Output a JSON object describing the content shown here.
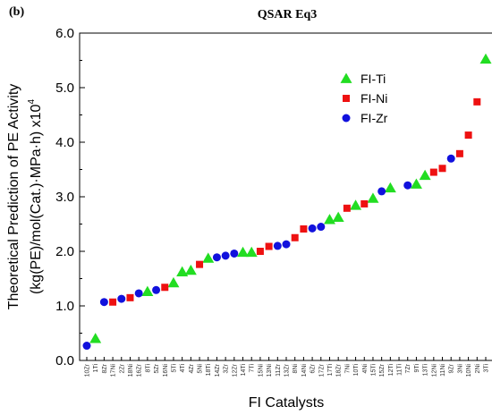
{
  "chart_data": {
    "type": "scatter",
    "panel_label": "(b)",
    "title": "QSAR Eq3",
    "xlabel": "FI Catalysts",
    "ylabel_line1": "Theoretical Prediction of PE Activity",
    "ylabel_line2": "(kg(PE)/mol(Cat.)·MPa·h) x10",
    "ylabel_exponent": "4",
    "ylim": [
      0.0,
      6.0
    ],
    "yticks": [
      "0.0",
      "1.0",
      "2.0",
      "3.0",
      "4.0",
      "5.0",
      "6.0"
    ],
    "grid": false,
    "legend_position": "top-right",
    "categories": [
      "10Zr",
      "1Ti",
      "8Zr",
      "17Ni",
      "2Zr",
      "18Ni",
      "16Zr",
      "8Ti",
      "5Zr",
      "16Ni",
      "5Ti",
      "4Ti",
      "4Zr",
      "5Ni",
      "18Ti",
      "14Zr",
      "3Zr",
      "12Zr",
      "14Ti",
      "7Ti",
      "15Ni",
      "13Ni",
      "11Zr",
      "13Zr",
      "8Ni",
      "14Ni",
      "6Zr",
      "17Zr",
      "17Ti",
      "18Zr",
      "7Ni",
      "10Ti",
      "4Ni",
      "15Ti",
      "15Zr",
      "12Ti",
      "11Ti",
      "7Zr",
      "9Ti",
      "13Ti",
      "12Ni",
      "11Ni",
      "9Zr",
      "3Ni",
      "10Ni",
      "2Ni",
      "3Ti"
    ],
    "series": [
      {
        "name": "FI-Ti",
        "color": "#22dd22",
        "marker": "triangle",
        "points": [
          {
            "x": "1Ti",
            "y": 0.4
          },
          {
            "x": "8Ti",
            "y": 1.26
          },
          {
            "x": "5Ti",
            "y": 1.42
          },
          {
            "x": "4Ti",
            "y": 1.62
          },
          {
            "x": "4Zr",
            "y": 1.65
          },
          {
            "x": "18Ti",
            "y": 1.87
          },
          {
            "x": "14Ti",
            "y": 1.98
          },
          {
            "x": "7Ti",
            "y": 1.98
          },
          {
            "x": "17Ti",
            "y": 2.58
          },
          {
            "x": "18Zr",
            "y": 2.62
          },
          {
            "x": "10Ti",
            "y": 2.84
          },
          {
            "x": "15Ti",
            "y": 2.97
          },
          {
            "x": "12Ti",
            "y": 3.16
          },
          {
            "x": "9Ti",
            "y": 3.23
          },
          {
            "x": "13Ti",
            "y": 3.39
          },
          {
            "x": "3Ti",
            "y": 5.52
          }
        ]
      },
      {
        "name": "FI-Ni",
        "color": "#ee1111",
        "marker": "square",
        "points": [
          {
            "x": "17Ni",
            "y": 1.07
          },
          {
            "x": "18Ni",
            "y": 1.15
          },
          {
            "x": "16Ni",
            "y": 1.34
          },
          {
            "x": "5Ni",
            "y": 1.76
          },
          {
            "x": "15Ni",
            "y": 2.0
          },
          {
            "x": "13Ni",
            "y": 2.09
          },
          {
            "x": "8Ni",
            "y": 2.25
          },
          {
            "x": "14Ni",
            "y": 2.41
          },
          {
            "x": "7Ni",
            "y": 2.79
          },
          {
            "x": "4Ni",
            "y": 2.87
          },
          {
            "x": "12Ni",
            "y": 3.45
          },
          {
            "x": "11Ni",
            "y": 3.52
          },
          {
            "x": "3Ni",
            "y": 3.79
          },
          {
            "x": "10Ni",
            "y": 4.13
          },
          {
            "x": "2Ni",
            "y": 4.74
          }
        ]
      },
      {
        "name": "FI-Zr",
        "color": "#1111dd",
        "marker": "circle",
        "points": [
          {
            "x": "10Zr",
            "y": 0.27
          },
          {
            "x": "8Zr",
            "y": 1.07
          },
          {
            "x": "2Zr",
            "y": 1.13
          },
          {
            "x": "16Zr",
            "y": 1.23
          },
          {
            "x": "5Zr",
            "y": 1.29
          },
          {
            "x": "14Zr",
            "y": 1.89
          },
          {
            "x": "3Zr",
            "y": 1.92
          },
          {
            "x": "12Zr",
            "y": 1.96
          },
          {
            "x": "11Zr",
            "y": 2.1
          },
          {
            "x": "13Zr",
            "y": 2.13
          },
          {
            "x": "6Zr",
            "y": 2.42
          },
          {
            "x": "17Zr",
            "y": 2.45
          },
          {
            "x": "15Zr",
            "y": 3.1
          },
          {
            "x": "7Zr",
            "y": 3.21
          },
          {
            "x": "9Zr",
            "y": 3.7
          }
        ]
      }
    ]
  }
}
